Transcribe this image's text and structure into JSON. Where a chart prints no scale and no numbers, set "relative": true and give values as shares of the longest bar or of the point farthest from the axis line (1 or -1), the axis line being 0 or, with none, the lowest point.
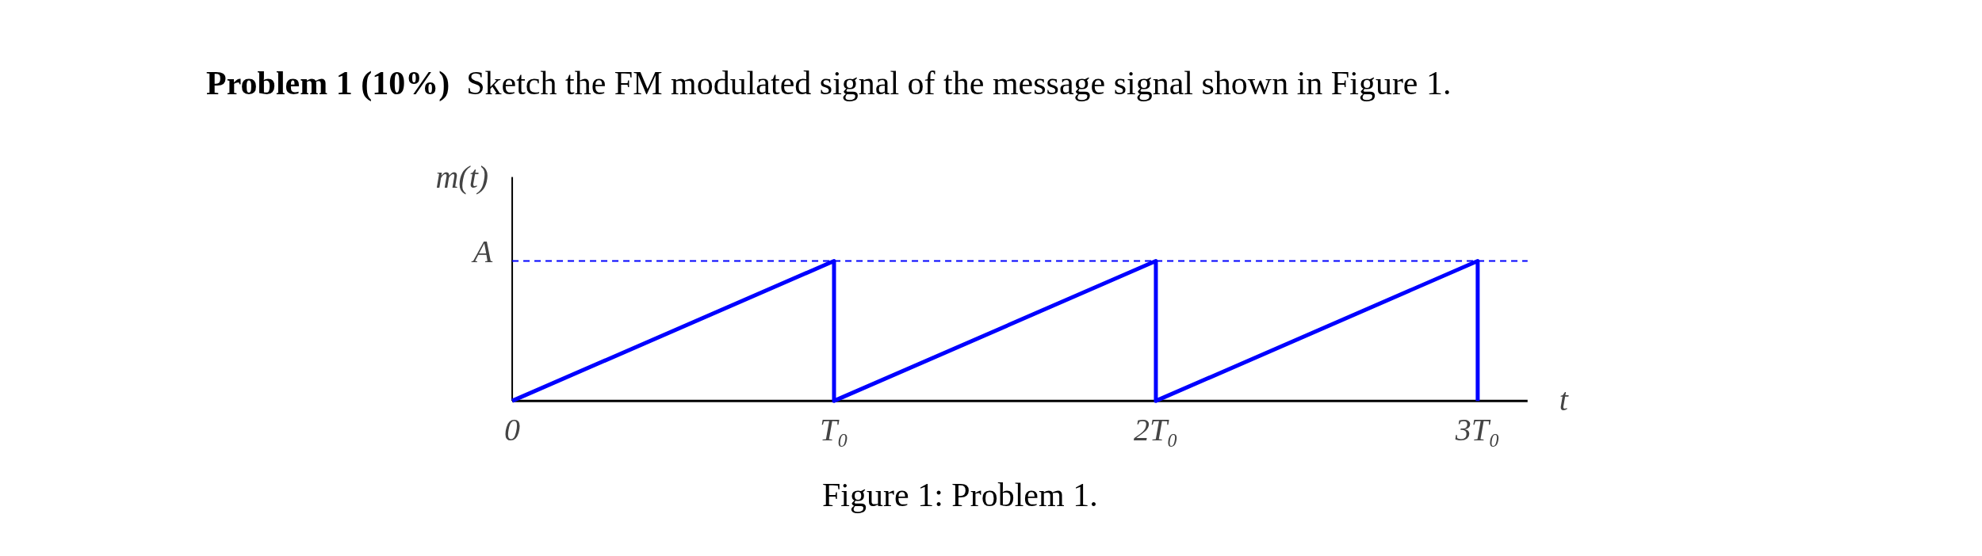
{
  "chart_data": {
    "type": "line",
    "title": "Problem 1 (10%)",
    "subtitle": "Sketch the FM modulated signal of the message signal shown in Figure 1.",
    "xlabel": "t",
    "ylabel": "m(t)",
    "relative": true,
    "x": [
      0,
      1,
      1,
      2,
      2,
      3,
      3
    ],
    "series": [
      {
        "color": "#0000ff",
        "values": [
          0,
          1,
          0,
          1,
          0,
          1,
          0
        ]
      }
    ],
    "xlim": [
      0,
      3.155
    ],
    "xticks": [
      {
        "value": 0,
        "label": "0"
      },
      {
        "value": 1,
        "label": "T₀"
      },
      {
        "value": 2,
        "label": "2T₀"
      },
      {
        "value": 3,
        "label": "3T₀"
      }
    ],
    "ref_lines": [
      {
        "axis": "y",
        "value": 1,
        "label": "A",
        "color": "#0000ff",
        "line_style": "dashed"
      }
    ],
    "annotations": [
      "Figure 1: Problem 1."
    ],
    "grid": false,
    "marker": "none",
    "line_style": "solid"
  }
}
